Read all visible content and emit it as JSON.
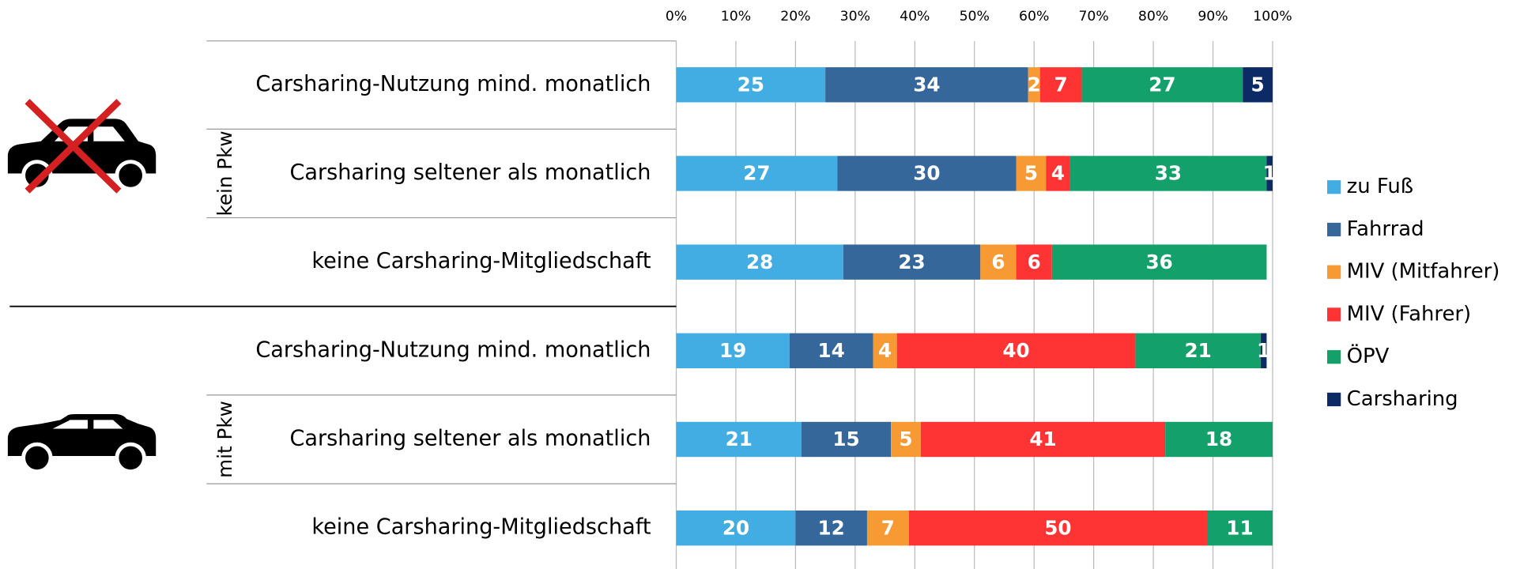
{
  "chart_data": {
    "type": "stacked-bar-horizontal",
    "categories": [
      "Carsharing-Nutzung mind. monatlich",
      "Carsharing seltener als monatlich",
      "keine Carsharing-Mitgliedschaft",
      "Carsharing-Nutzung mind. monatlich",
      "Carsharing seltener als monatlich",
      "keine Carsharing-Mitgliedschaft"
    ],
    "groups": [
      "kein Pkw",
      "mit Pkw"
    ],
    "series": [
      {
        "name": "zu Fuß",
        "color": "#41ade2",
        "values": [
          25,
          27,
          28,
          19,
          21,
          20
        ]
      },
      {
        "name": "Fahrrad",
        "color": "#35679a",
        "values": [
          34,
          30,
          23,
          14,
          15,
          12
        ]
      },
      {
        "name": "MIV (Mitfahrer)",
        "color": "#f79a33",
        "values": [
          2,
          5,
          6,
          4,
          5,
          7
        ]
      },
      {
        "name": "MIV (Fahrer)",
        "color": "#fe3333",
        "values": [
          7,
          4,
          6,
          40,
          41,
          50
        ]
      },
      {
        "name": "ÖPV",
        "color": "#14a06a",
        "values": [
          27,
          33,
          36,
          21,
          18,
          11
        ]
      },
      {
        "name": "Carsharing",
        "color": "#0c2a66",
        "values": [
          5,
          1,
          null,
          1,
          null,
          null
        ]
      }
    ],
    "xlim": [
      0,
      100
    ],
    "xticks": [
      {
        "value": 0,
        "label": "0%"
      },
      {
        "value": 10,
        "label": "10%"
      },
      {
        "value": 20,
        "label": "20%"
      },
      {
        "value": 30,
        "label": "30%"
      },
      {
        "value": 40,
        "label": "40%"
      },
      {
        "value": 50,
        "label": "50%"
      },
      {
        "value": 60,
        "label": "60%"
      },
      {
        "value": 70,
        "label": "70%"
      },
      {
        "value": 80,
        "label": "80%"
      },
      {
        "value": 90,
        "label": "90%"
      },
      {
        "value": 100,
        "label": "100%"
      }
    ],
    "grid": true,
    "legend": "right"
  }
}
